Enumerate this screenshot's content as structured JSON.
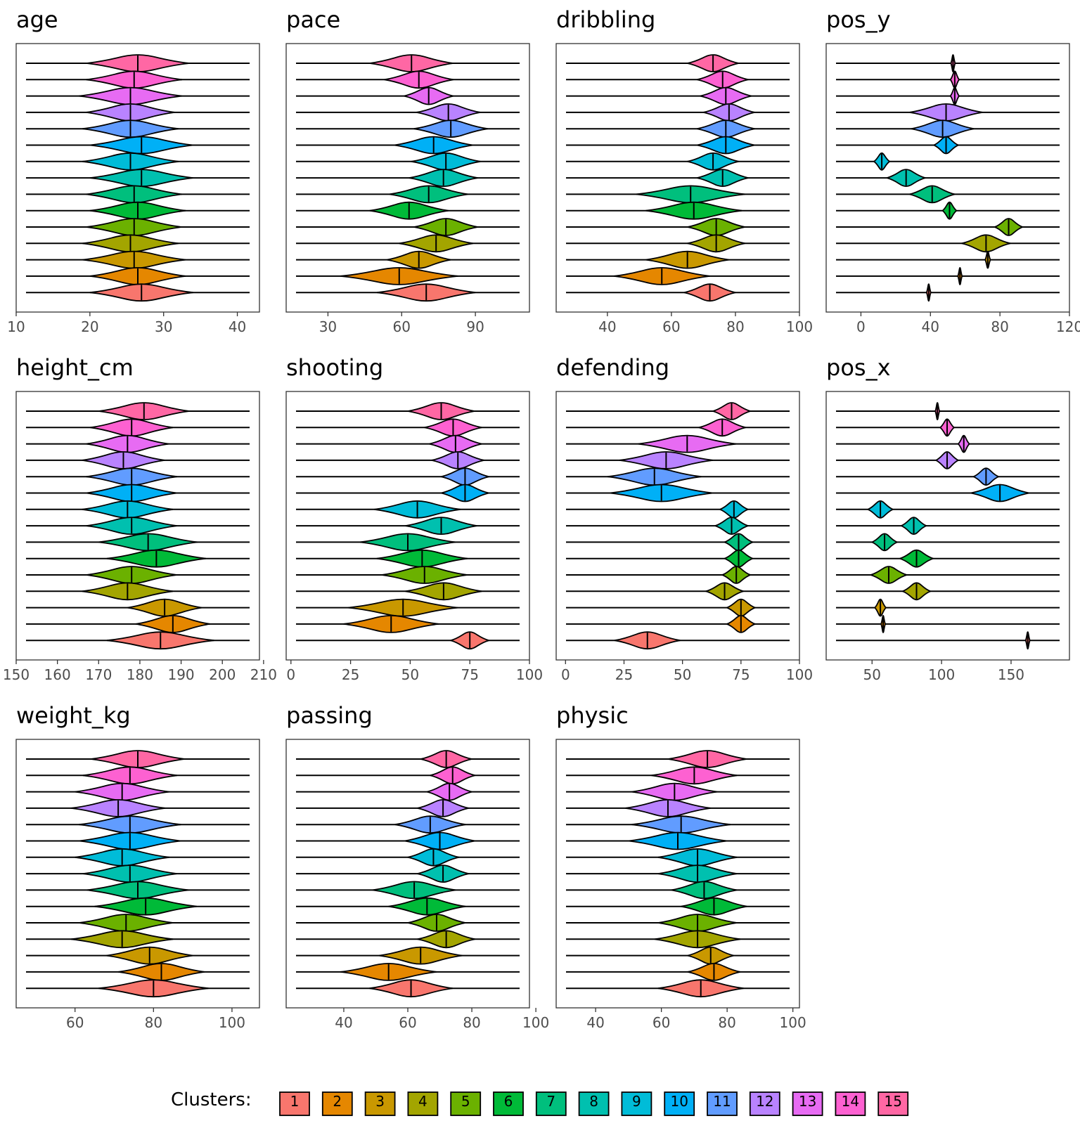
{
  "chart_data": [
    {
      "title": "age",
      "type": "violin",
      "xlim": [
        10,
        43
      ],
      "ticks": [
        10,
        20,
        30,
        40
      ],
      "clusters": [
        15,
        14,
        13,
        12,
        11,
        10,
        9,
        8,
        7,
        6,
        5,
        4,
        3,
        2,
        1
      ],
      "medians": [
        26.5,
        26,
        25.5,
        25.5,
        25.5,
        27,
        25.5,
        27,
        26,
        26.5,
        26,
        25.5,
        26,
        26.5,
        27
      ],
      "spread": [
        14,
        13,
        14,
        12,
        13,
        14,
        13,
        14,
        13,
        13,
        13,
        13,
        14,
        13,
        14
      ]
    },
    {
      "title": "pace",
      "type": "violin",
      "xlim": [
        13,
        112
      ],
      "ticks": [
        30,
        60,
        90
      ],
      "clusters": [
        15,
        14,
        13,
        12,
        11,
        10,
        9,
        8,
        7,
        6,
        5,
        4,
        3,
        2,
        1
      ],
      "medians": [
        64,
        67,
        71,
        79,
        80,
        73,
        78,
        77,
        71,
        63,
        78,
        74,
        67,
        59,
        70
      ],
      "spread": [
        34,
        28,
        20,
        26,
        30,
        32,
        28,
        28,
        32,
        32,
        26,
        30,
        26,
        48,
        40
      ]
    },
    {
      "title": "dribbling",
      "type": "violin",
      "xlim": [
        24,
        100
      ],
      "ticks": [
        40,
        60,
        80,
        100
      ],
      "clusters": [
        15,
        14,
        13,
        12,
        11,
        10,
        9,
        8,
        7,
        6,
        5,
        4,
        3,
        2,
        1
      ],
      "medians": [
        73,
        76,
        77,
        78,
        77,
        77,
        73,
        76,
        66,
        67,
        74,
        74,
        65,
        57,
        72
      ],
      "spread": [
        16,
        16,
        16,
        16,
        18,
        18,
        16,
        16,
        34,
        30,
        18,
        18,
        26,
        30,
        16
      ]
    },
    {
      "title": "pos_y",
      "type": "violin",
      "xlim": [
        -20,
        120
      ],
      "ticks": [
        0,
        40,
        80,
        120
      ],
      "clusters": [
        15,
        14,
        13,
        12,
        11,
        10,
        9,
        8,
        7,
        6,
        5,
        4,
        3,
        2,
        1
      ],
      "medians": [
        53,
        54,
        54,
        49,
        47,
        49,
        12,
        26,
        41,
        51,
        85,
        72,
        73,
        57,
        39
      ],
      "spread": [
        1.5,
        5,
        5,
        42,
        36,
        14,
        9,
        22,
        26,
        8,
        16,
        28,
        3,
        1.5,
        1.5
      ]
    },
    {
      "title": "height_cm",
      "type": "violin",
      "xlim": [
        150,
        209
      ],
      "ticks": [
        150,
        160,
        170,
        180,
        190,
        200,
        210
      ],
      "clusters": [
        15,
        14,
        13,
        12,
        11,
        10,
        9,
        8,
        7,
        6,
        5,
        4,
        3,
        2,
        1
      ],
      "medians": [
        181,
        178,
        177,
        176,
        178,
        178,
        177,
        178,
        182,
        184,
        178,
        177,
        186,
        188,
        185
      ],
      "spread": [
        22,
        20,
        20,
        20,
        22,
        22,
        22,
        22,
        24,
        24,
        22,
        22,
        18,
        18,
        26
      ]
    },
    {
      "title": "shooting",
      "type": "violin",
      "xlim": [
        -2,
        100
      ],
      "ticks": [
        0,
        25,
        50,
        75,
        100
      ],
      "clusters": [
        15,
        14,
        13,
        12,
        11,
        10,
        9,
        8,
        7,
        6,
        5,
        4,
        3,
        2,
        1
      ],
      "medians": [
        63,
        68,
        69,
        70,
        73,
        73,
        53,
        63,
        49,
        55,
        56,
        64,
        47,
        42,
        75
      ],
      "spread": [
        28,
        24,
        22,
        22,
        20,
        20,
        36,
        30,
        40,
        38,
        36,
        32,
        46,
        40,
        16
      ]
    },
    {
      "title": "defending",
      "type": "violin",
      "xlim": [
        -4,
        100
      ],
      "ticks": [
        0,
        25,
        50,
        75,
        100
      ],
      "clusters": [
        15,
        14,
        13,
        12,
        11,
        10,
        9,
        8,
        7,
        6,
        5,
        4,
        3,
        2,
        1
      ],
      "medians": [
        71,
        67,
        52,
        43,
        38,
        41,
        72,
        71,
        74,
        74,
        73,
        68,
        75,
        75,
        35
      ],
      "spread": [
        16,
        20,
        42,
        40,
        40,
        44,
        12,
        14,
        12,
        12,
        12,
        16,
        12,
        12,
        28
      ]
    },
    {
      "title": "pos_x",
      "type": "violin",
      "xlim": [
        17,
        192
      ],
      "ticks": [
        50,
        100,
        150
      ],
      "clusters": [
        15,
        14,
        13,
        12,
        11,
        10,
        9,
        8,
        7,
        6,
        5,
        4,
        3,
        2,
        1
      ],
      "medians": [
        97,
        104,
        116,
        104,
        132,
        142,
        56,
        80,
        59,
        82,
        62,
        82,
        56,
        58,
        162
      ],
      "spread": [
        2,
        10,
        8,
        16,
        18,
        42,
        18,
        18,
        18,
        24,
        26,
        20,
        8,
        2,
        2
      ]
    },
    {
      "title": "weight_kg",
      "type": "violin",
      "xlim": [
        45,
        107
      ],
      "ticks": [
        60,
        80,
        100
      ],
      "clusters": [
        15,
        14,
        13,
        12,
        11,
        10,
        9,
        8,
        7,
        6,
        5,
        4,
        3,
        2,
        1
      ],
      "medians": [
        76,
        74,
        72,
        71,
        74,
        74,
        72,
        74,
        76,
        78,
        73,
        72,
        79,
        82,
        80
      ],
      "spread": [
        24,
        24,
        24,
        24,
        26,
        26,
        24,
        24,
        26,
        26,
        24,
        26,
        22,
        22,
        28
      ]
    },
    {
      "title": "passing",
      "type": "violin",
      "xlim": [
        22,
        98
      ],
      "ticks": [
        40,
        60,
        80,
        100
      ],
      "clusters": [
        15,
        14,
        13,
        12,
        11,
        10,
        9,
        8,
        7,
        6,
        5,
        4,
        3,
        2,
        1
      ],
      "medians": [
        72,
        74,
        73,
        71,
        67,
        70,
        68,
        71,
        62,
        66,
        69,
        72,
        64,
        54,
        61
      ],
      "spread": [
        16,
        14,
        14,
        16,
        22,
        22,
        16,
        16,
        26,
        24,
        18,
        18,
        26,
        30,
        26
      ]
    },
    {
      "title": "physic",
      "type": "violin",
      "xlim": [
        28,
        102
      ],
      "ticks": [
        40,
        60,
        80,
        100
      ],
      "clusters": [
        15,
        14,
        13,
        12,
        11,
        10,
        9,
        8,
        7,
        6,
        5,
        4,
        3,
        2,
        1
      ],
      "medians": [
        74,
        70,
        64,
        62,
        66,
        65,
        71,
        71,
        73,
        76,
        71,
        71,
        75,
        76,
        72
      ],
      "spread": [
        24,
        26,
        26,
        26,
        30,
        30,
        24,
        24,
        20,
        20,
        24,
        26,
        14,
        16,
        26
      ]
    }
  ],
  "legend": {
    "title": "Clusters:",
    "placement": "bottom",
    "items": [
      {
        "label": "1",
        "color": "#F8766D"
      },
      {
        "label": "2",
        "color": "#E58700"
      },
      {
        "label": "3",
        "color": "#C99800"
      },
      {
        "label": "4",
        "color": "#A3A500"
      },
      {
        "label": "5",
        "color": "#6BB100"
      },
      {
        "label": "6",
        "color": "#00BA38"
      },
      {
        "label": "7",
        "color": "#00BF7D"
      },
      {
        "label": "8",
        "color": "#00C0AF"
      },
      {
        "label": "9",
        "color": "#00BCD8"
      },
      {
        "label": "10",
        "color": "#00B0F6"
      },
      {
        "label": "11",
        "color": "#619CFF"
      },
      {
        "label": "12",
        "color": "#B983FF"
      },
      {
        "label": "13",
        "color": "#E76BF3"
      },
      {
        "label": "14",
        "color": "#FD61D1"
      },
      {
        "label": "15",
        "color": "#FF67A4"
      }
    ]
  }
}
